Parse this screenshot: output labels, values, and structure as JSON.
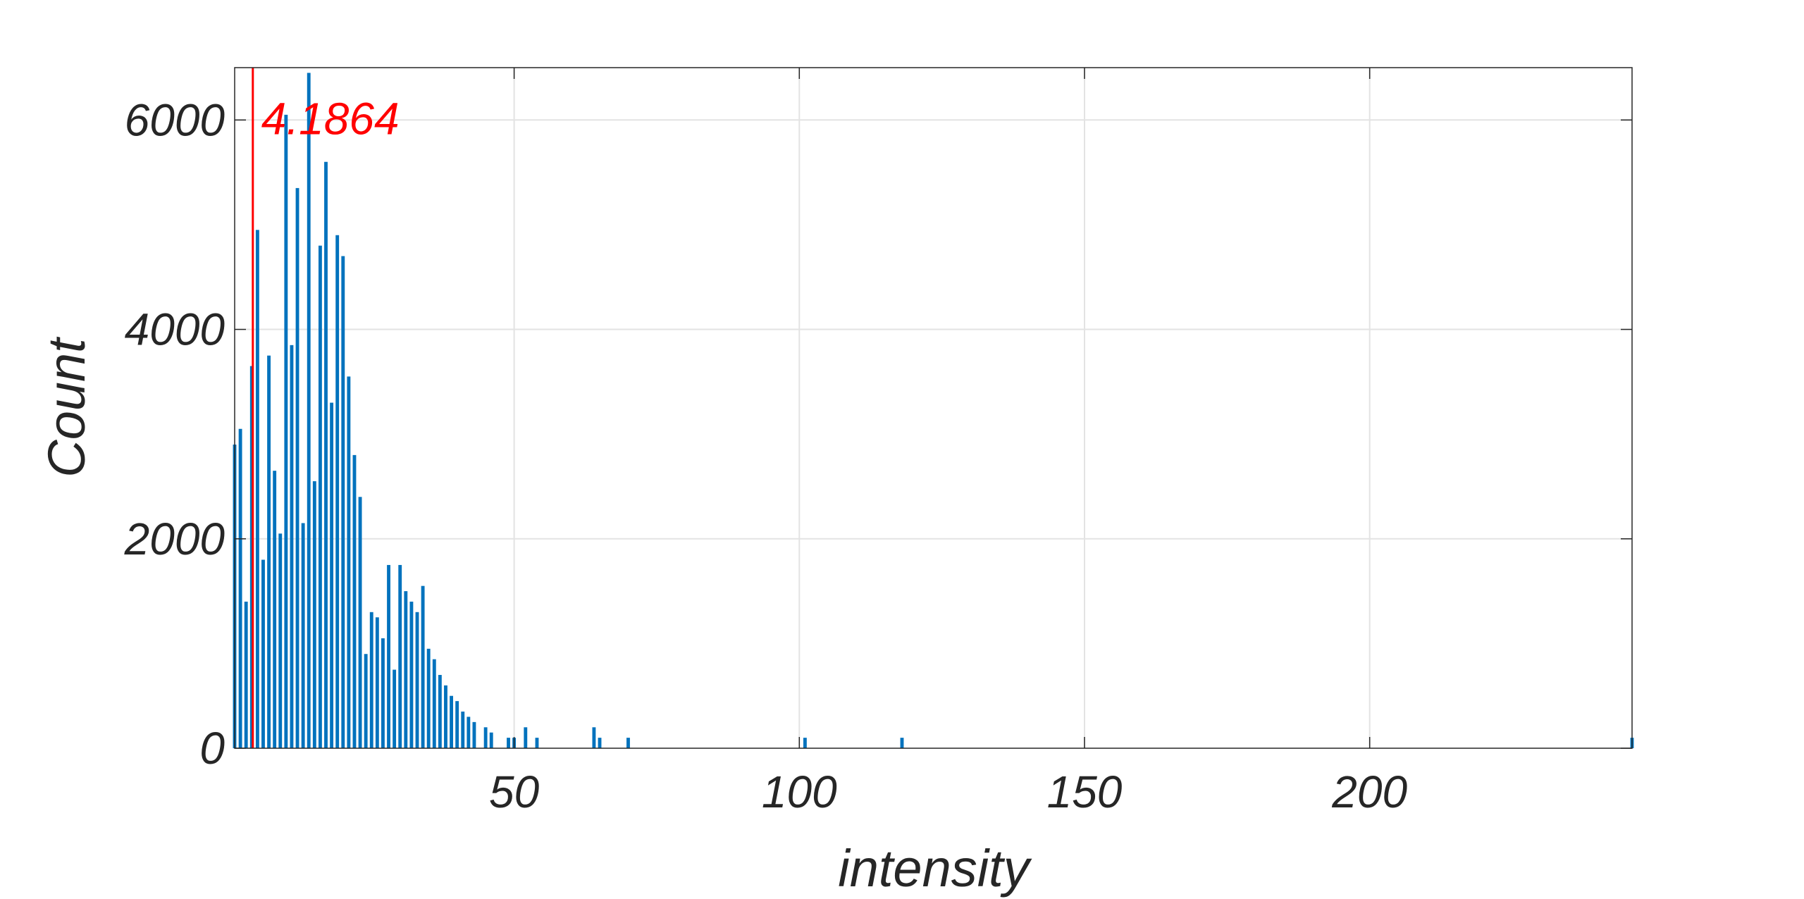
{
  "chart_data": {
    "type": "bar",
    "title": "",
    "xlabel": "intensity",
    "ylabel": "Count",
    "xlim": [
      1,
      246
    ],
    "ylim": [
      0,
      6500
    ],
    "grid": true,
    "x_ticks": [
      "50",
      "100",
      "150",
      "200"
    ],
    "y_ticks": [
      "0",
      "2000",
      "4000",
      "6000"
    ],
    "bar_color": "#0072BD",
    "threshold": {
      "value": 4.1864,
      "label": "4.1864",
      "color": "#FF0000"
    },
    "x": [
      1,
      2,
      3,
      4,
      5,
      6,
      7,
      8,
      9,
      10,
      11,
      12,
      13,
      14,
      15,
      16,
      17,
      18,
      19,
      20,
      21,
      22,
      23,
      24,
      25,
      26,
      27,
      28,
      29,
      30,
      31,
      32,
      33,
      34,
      35,
      36,
      37,
      38,
      39,
      40,
      41,
      42,
      43,
      45,
      46,
      49,
      50,
      52,
      54,
      64,
      65,
      70,
      101,
      118,
      246
    ],
    "values": [
      2900,
      3050,
      1400,
      3650,
      4950,
      1800,
      3750,
      2650,
      2050,
      6050,
      3850,
      5350,
      2150,
      6450,
      2550,
      4800,
      5600,
      3300,
      4900,
      4700,
      3550,
      2800,
      2400,
      900,
      1300,
      1250,
      1050,
      1750,
      750,
      1750,
      1500,
      1400,
      1300,
      1550,
      950,
      850,
      700,
      600,
      500,
      450,
      350,
      300,
      250,
      200,
      150,
      100,
      100,
      200,
      100,
      200,
      100,
      100,
      100,
      100,
      100
    ]
  }
}
